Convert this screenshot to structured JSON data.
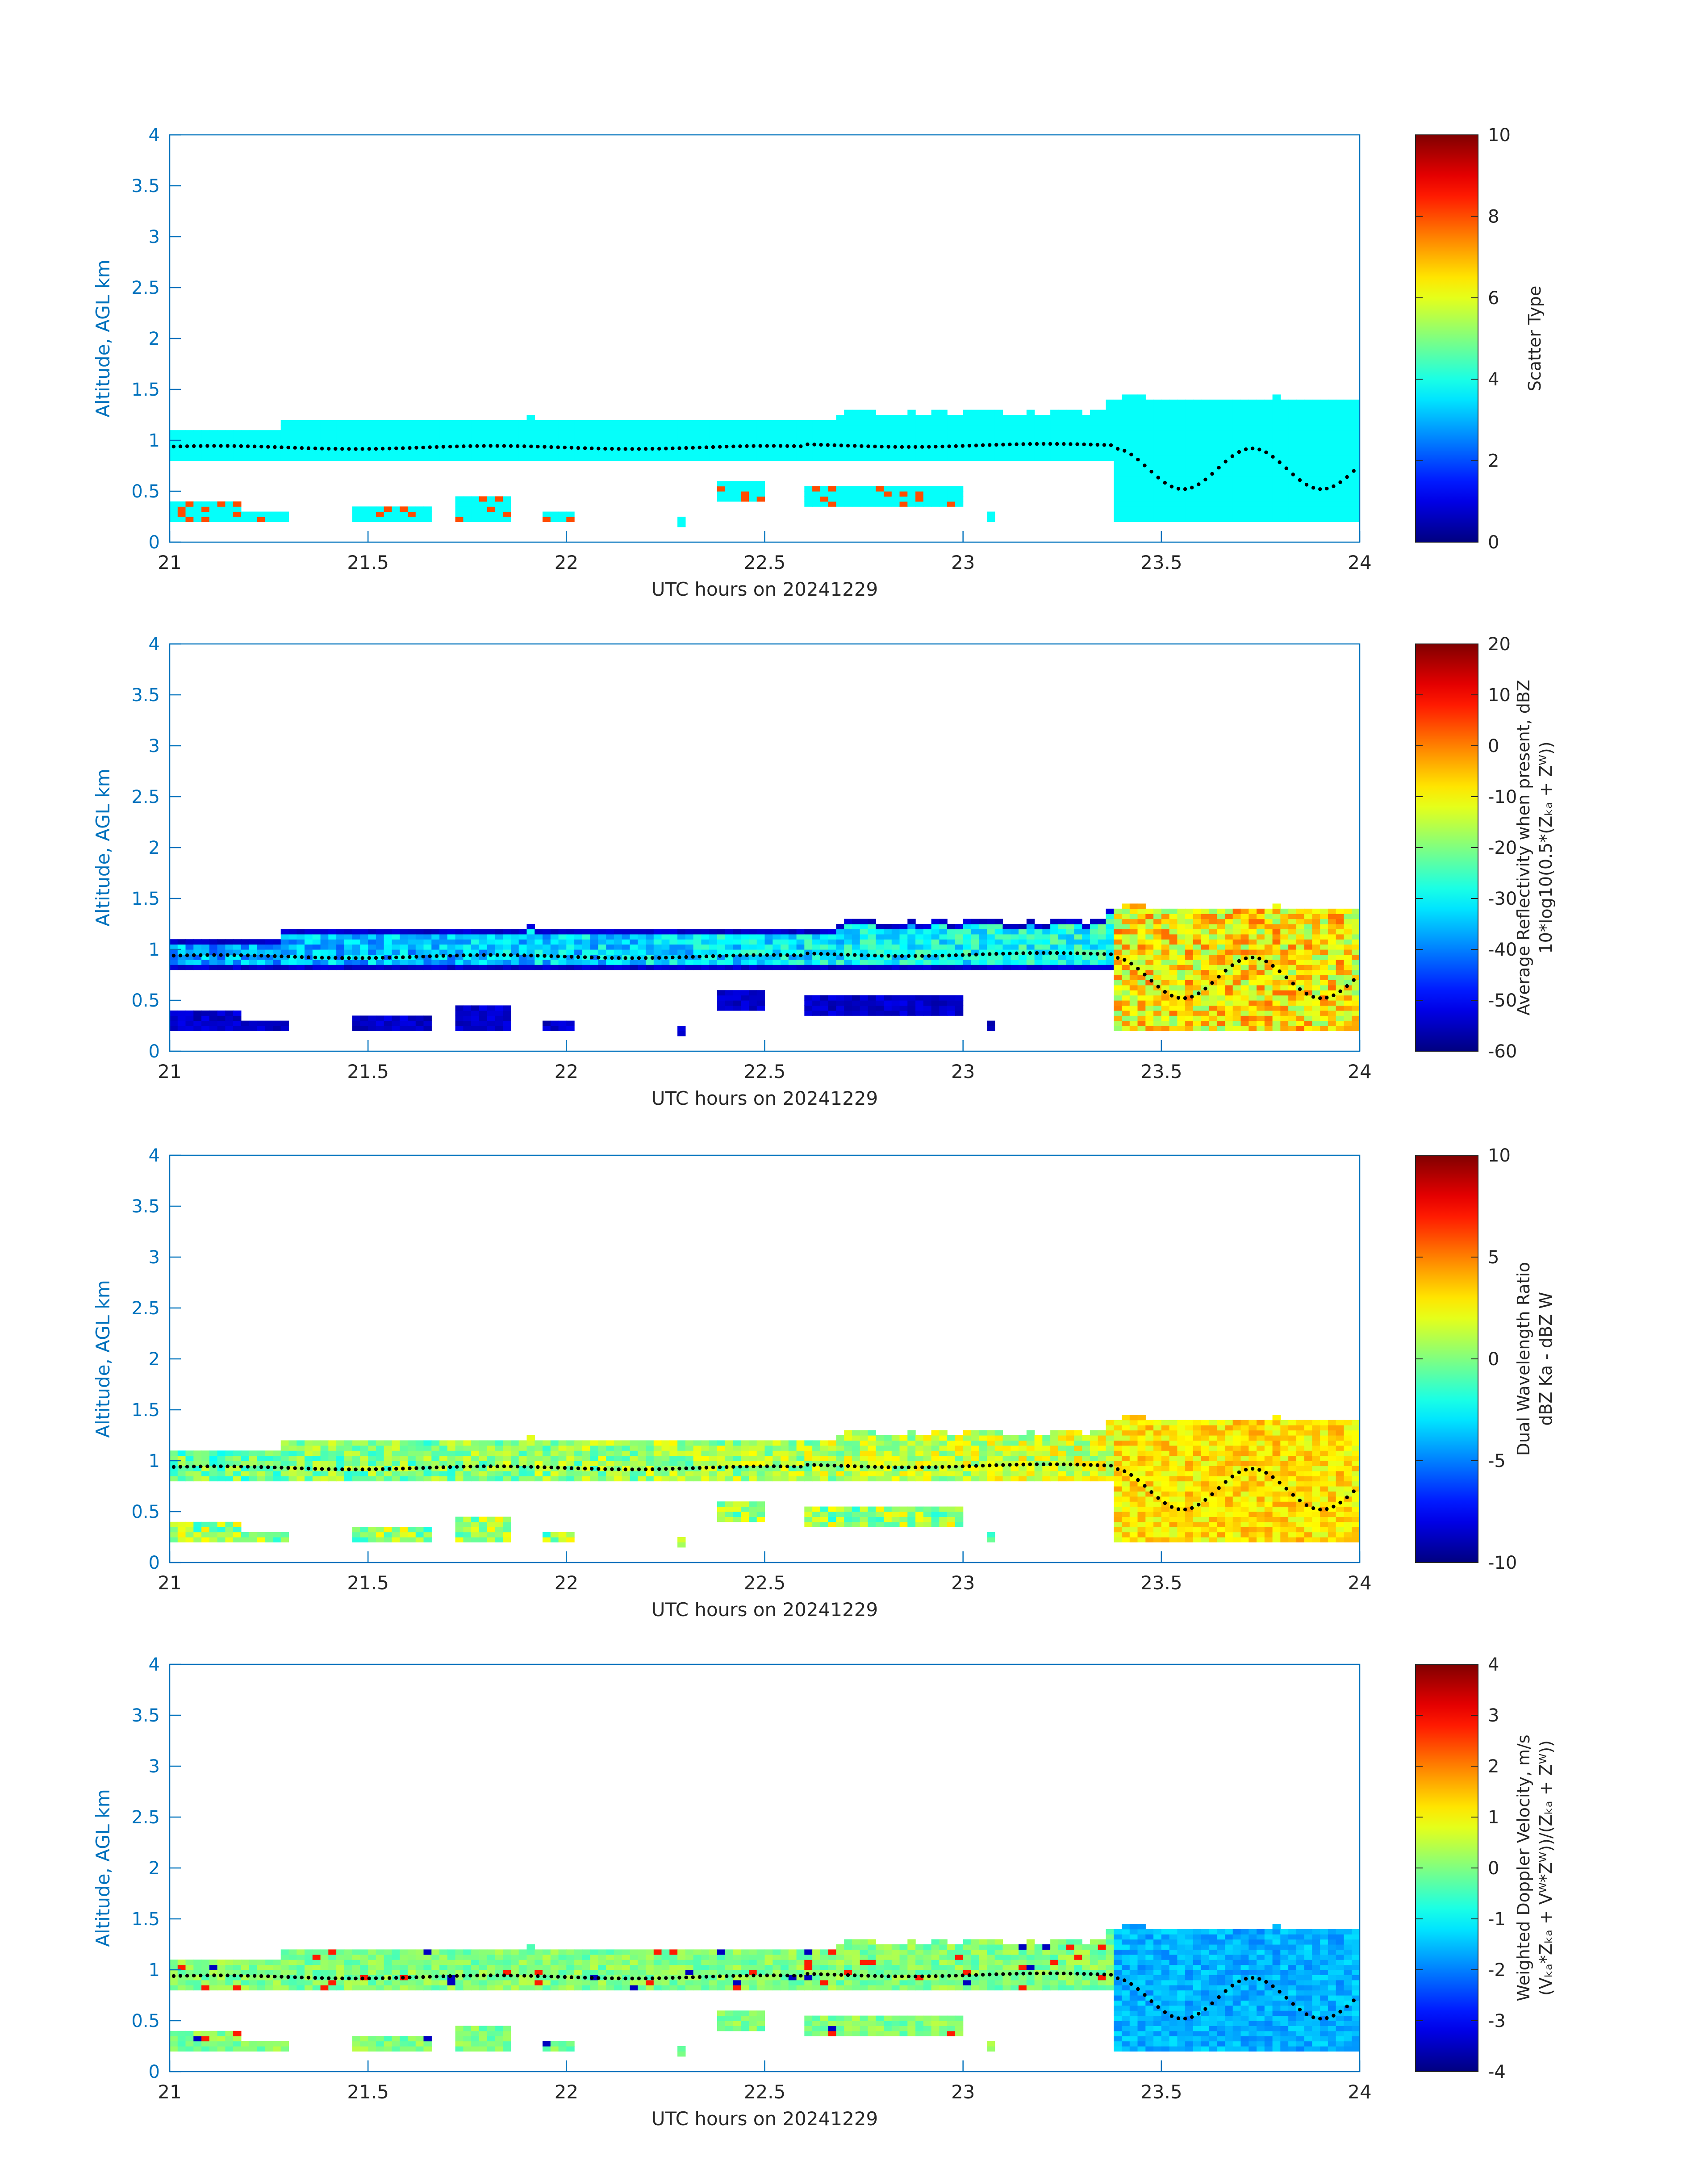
{
  "figure": {
    "colors": {
      "axis": "#0072BD",
      "text": "#262626",
      "marker": "#000000"
    }
  },
  "chart_data": [
    {
      "type": "heatmap",
      "title": "",
      "xlabel": "UTC hours on 20241229",
      "ylabel": "Altitude, AGL km",
      "xlim": [
        21,
        24
      ],
      "ylim": [
        0,
        4
      ],
      "xticks": [
        "21",
        "21.5",
        "22",
        "22.5",
        "23",
        "23.5",
        "24"
      ],
      "yticks": [
        "0",
        "0.5",
        "1",
        "1.5",
        "2",
        "2.5",
        "3",
        "3.5",
        "4"
      ],
      "colorbar": {
        "label_lines": [
          "Scatter Type"
        ],
        "ticks": [
          "0",
          "2",
          "4",
          "6",
          "8",
          "10"
        ],
        "clim": [
          0,
          10
        ]
      },
      "field": "scatter",
      "colormap": "jet"
    },
    {
      "type": "heatmap",
      "title": "",
      "xlabel": "UTC hours on 20241229",
      "ylabel": "Altitude, AGL km",
      "xlim": [
        21,
        24
      ],
      "ylim": [
        0,
        4
      ],
      "xticks": [
        "21",
        "21.5",
        "22",
        "22.5",
        "23",
        "23.5",
        "24"
      ],
      "yticks": [
        "0",
        "0.5",
        "1",
        "1.5",
        "2",
        "2.5",
        "3",
        "3.5",
        "4"
      ],
      "colorbar": {
        "label_lines": [
          "Average Reflectivity when present, dBZ",
          "10*log10(0.5*(Zₖₐ + Zᵂ))"
        ],
        "ticks": [
          "-60",
          "-50",
          "-40",
          "-30",
          "-20",
          "-10",
          "0",
          "10",
          "20"
        ],
        "clim": [
          -60,
          20
        ]
      },
      "field": "reflectivity",
      "colormap": "jet"
    },
    {
      "type": "heatmap",
      "title": "",
      "xlabel": "UTC hours on 20241229",
      "ylabel": "Altitude, AGL km",
      "xlim": [
        21,
        24
      ],
      "ylim": [
        0,
        4
      ],
      "xticks": [
        "21",
        "21.5",
        "22",
        "22.5",
        "23",
        "23.5",
        "24"
      ],
      "yticks": [
        "0",
        "0.5",
        "1",
        "1.5",
        "2",
        "2.5",
        "3",
        "3.5",
        "4"
      ],
      "colorbar": {
        "label_lines": [
          "Dual Wavelength Ratio",
          "dBZ Ka - dBZ W"
        ],
        "ticks": [
          "-10",
          "-5",
          "0",
          "5",
          "10"
        ],
        "clim": [
          -10,
          10
        ]
      },
      "field": "dwr",
      "colormap": "jet"
    },
    {
      "type": "heatmap",
      "title": "",
      "xlabel": "UTC hours on 20241229",
      "ylabel": "Altitude, AGL km",
      "xlim": [
        21,
        24
      ],
      "ylim": [
        0,
        4
      ],
      "xticks": [
        "21",
        "21.5",
        "22",
        "22.5",
        "23",
        "23.5",
        "24"
      ],
      "yticks": [
        "0",
        "0.5",
        "1",
        "1.5",
        "2",
        "2.5",
        "3",
        "3.5",
        "4"
      ],
      "colorbar": {
        "label_lines": [
          "Weighted Doppler Velocity, m/s",
          "(Vₖₐ*Zₖₐ + Vᵂ*Zᵂ))/(Zₖₐ + Zᵂ))"
        ],
        "ticks": [
          "-4",
          "-3",
          "-2",
          "-1",
          "0",
          "1",
          "2",
          "3",
          "4"
        ],
        "clim": [
          -4,
          4
        ]
      },
      "field": "velocity",
      "colormap": "jet"
    }
  ]
}
